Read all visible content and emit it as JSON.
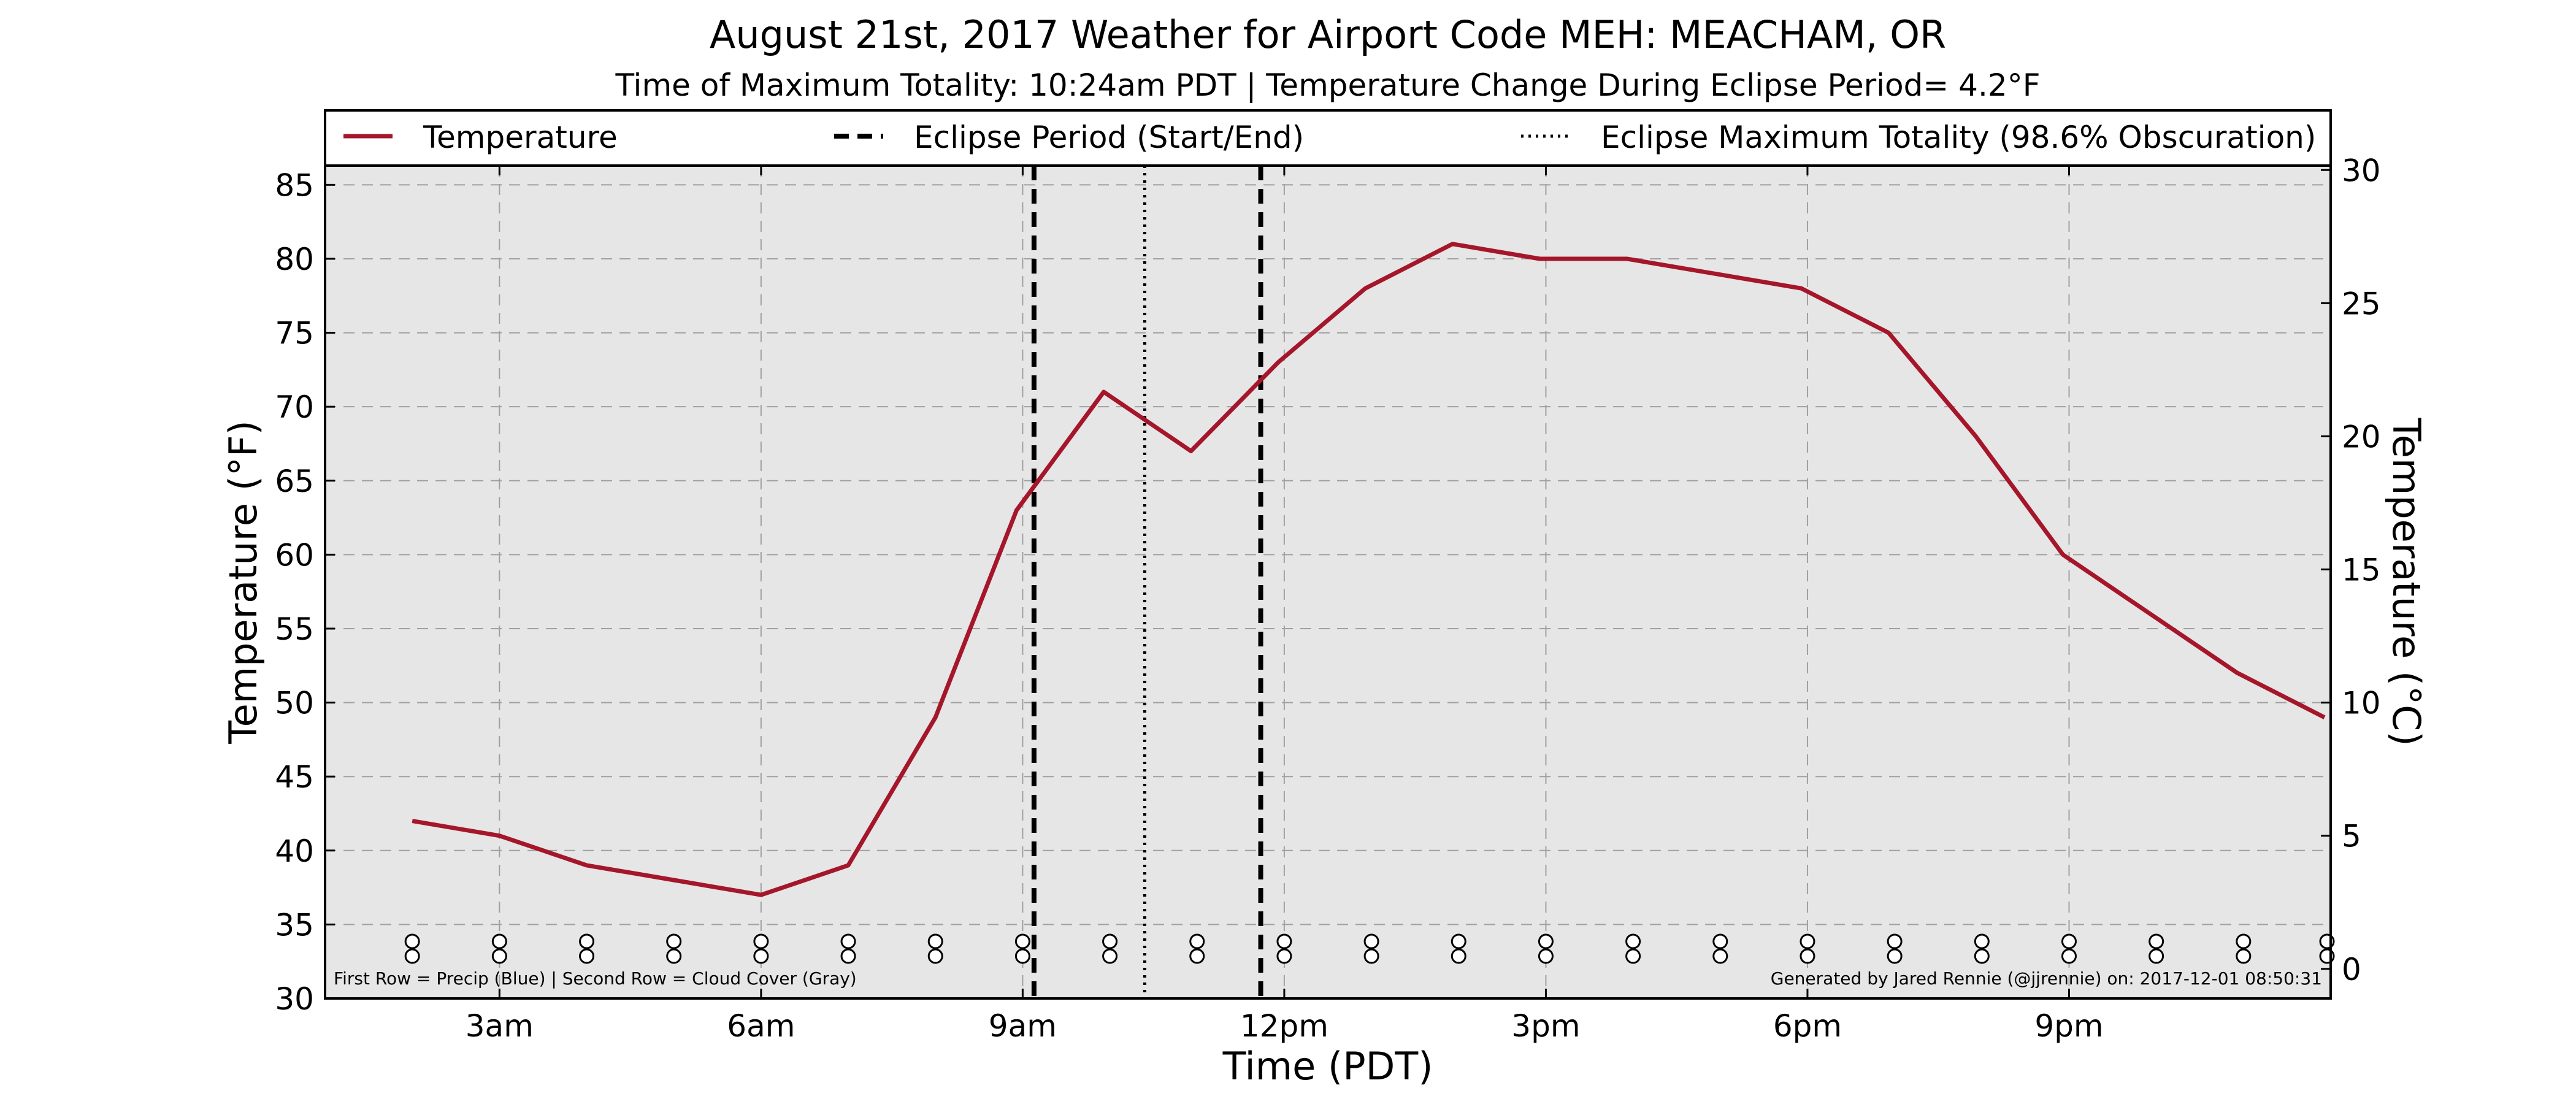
{
  "chart_data": {
    "type": "line",
    "title": "August 21st, 2017 Weather for Airport Code MEH: MEACHAM, OR",
    "subtitle": "Time of Maximum Totality: 10:24am PDT | Temperature Change During Eclipse Period= 4.2°F",
    "xlabel": "Time (PDT)",
    "ylabel": "Temperature (°F)",
    "y2label": "Temperature (°C)",
    "xlim": [
      1,
      24
    ],
    "ylim": [
      30,
      86.3
    ],
    "y2lim": [
      -1.111,
      30.167
    ],
    "x_ticks": [
      {
        "x": 3,
        "label": "3am"
      },
      {
        "x": 6,
        "label": "6am"
      },
      {
        "x": 9,
        "label": "9am"
      },
      {
        "x": 12,
        "label": "12pm"
      },
      {
        "x": 15,
        "label": "3pm"
      },
      {
        "x": 18,
        "label": "6pm"
      },
      {
        "x": 21,
        "label": "9pm"
      }
    ],
    "y_ticks": [
      "30",
      "35",
      "40",
      "45",
      "50",
      "55",
      "60",
      "65",
      "70",
      "75",
      "80",
      "85"
    ],
    "y2_ticks": [
      "0",
      "5",
      "10",
      "15",
      "20",
      "25",
      "30"
    ],
    "grid": true,
    "legend_position": "top",
    "legend": [
      {
        "label": "Temperature",
        "style": "solid"
      },
      {
        "label": "Eclipse Period (Start/End)",
        "style": "dashed"
      },
      {
        "label": "Eclipse Maximum Totality (98.6% Obscuration)",
        "style": "dotted"
      }
    ],
    "series": [
      {
        "name": "Temperature",
        "color": "#a5162b",
        "x": [
          2,
          3,
          4,
          5,
          6,
          7,
          8,
          8.93,
          9.93,
          10.93,
          11.93,
          12.93,
          13.93,
          14.93,
          15.93,
          16.93,
          17.93,
          18.93,
          19.93,
          20.93,
          21.93,
          22.93,
          23.93
        ],
        "values": [
          42,
          41,
          39,
          38,
          37,
          39,
          49,
          63,
          71,
          67,
          73,
          78,
          81,
          80,
          80,
          79,
          78,
          75,
          68,
          60,
          56,
          52,
          49
        ]
      }
    ],
    "eclipse_lines": {
      "start": 9.13,
      "max": 10.4,
      "end": 11.73
    },
    "precip_row_x": [
      2,
      3,
      4,
      5,
      6,
      7,
      8,
      9,
      10,
      11,
      12,
      13,
      14,
      15,
      16,
      17,
      18,
      19,
      20,
      21,
      22,
      23,
      24
    ],
    "cloud_row_x": [
      2,
      3,
      4,
      5,
      6,
      7,
      8,
      9,
      10,
      11,
      12,
      13,
      14,
      15,
      16,
      17,
      18,
      19,
      20,
      21,
      22,
      23,
      24
    ],
    "footnote_left": "First Row = Precip (Blue) | Second Row = Cloud Cover (Gray)",
    "footnote_right": "Generated by Jared Rennie (@jjrennie) on: 2017-12-01 08:50:31",
    "colors": {
      "plot_background": "#e6e6e6",
      "grid": "#a0a0a0",
      "temperature": "#a5162b",
      "eclipse_lines": "#000000"
    }
  }
}
